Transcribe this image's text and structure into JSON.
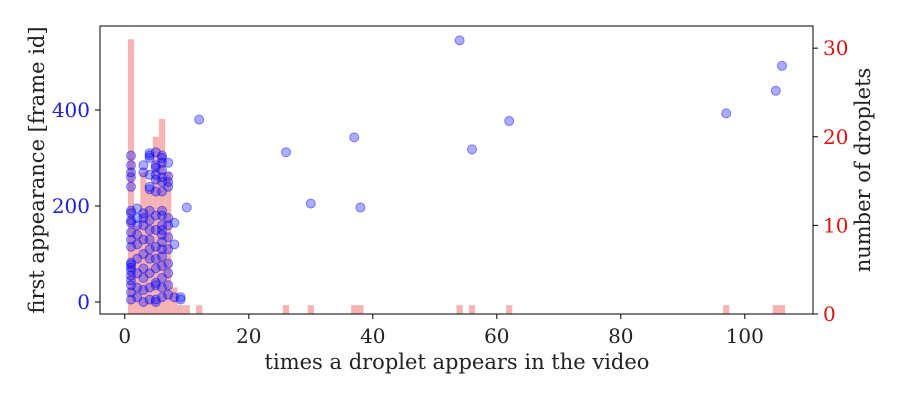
{
  "chart_data": {
    "type": "scatter",
    "title": "",
    "xlabel": "times a droplet appears in the video",
    "ylabel_left": "first appearance [frame id]",
    "ylabel_right": "number of droplets",
    "xlim": [
      -4,
      111
    ],
    "ylim_left": [
      -25,
      575
    ],
    "ylim_right": [
      0,
      32.5
    ],
    "xticks": [
      0,
      20,
      40,
      60,
      80,
      100
    ],
    "yticks_left": [
      0,
      200,
      400
    ],
    "yticks_right": [
      0,
      10,
      20,
      30
    ],
    "grid": false,
    "legend": "none",
    "colors": {
      "scatter": "#0000ff",
      "histogram": "#f4a6a6",
      "left_axis_text": "#1f1fd6",
      "right_axis_text": "#e01010"
    },
    "series": [
      {
        "kind": "scatter",
        "axis": "left",
        "points": [
          [
            1,
            5
          ],
          [
            1,
            20
          ],
          [
            1,
            35
          ],
          [
            1,
            45
          ],
          [
            1,
            55
          ],
          [
            1,
            65
          ],
          [
            1,
            72
          ],
          [
            1,
            78
          ],
          [
            1,
            82
          ],
          [
            1,
            115
          ],
          [
            1,
            130
          ],
          [
            1,
            145
          ],
          [
            1,
            165
          ],
          [
            1,
            170
          ],
          [
            1,
            185
          ],
          [
            1,
            190
          ],
          [
            1,
            240
          ],
          [
            1,
            260
          ],
          [
            1,
            270
          ],
          [
            1,
            285
          ],
          [
            1,
            305
          ],
          [
            2,
            10
          ],
          [
            2,
            30
          ],
          [
            2,
            60
          ],
          [
            2,
            90
          ],
          [
            2,
            120
          ],
          [
            2,
            140
          ],
          [
            2,
            160
          ],
          [
            2,
            175
          ],
          [
            2,
            195
          ],
          [
            3,
            0
          ],
          [
            3,
            25
          ],
          [
            3,
            50
          ],
          [
            3,
            70
          ],
          [
            3,
            100
          ],
          [
            3,
            130
          ],
          [
            3,
            160
          ],
          [
            3,
            175
          ],
          [
            3,
            185
          ],
          [
            3,
            270
          ],
          [
            3,
            285
          ],
          [
            4,
            5
          ],
          [
            4,
            30
          ],
          [
            4,
            60
          ],
          [
            4,
            90
          ],
          [
            4,
            110
          ],
          [
            4,
            130
          ],
          [
            4,
            150
          ],
          [
            4,
            170
          ],
          [
            4,
            190
          ],
          [
            4,
            235
          ],
          [
            4,
            240
          ],
          [
            4,
            265
          ],
          [
            4,
            300
          ],
          [
            4,
            305
          ],
          [
            4,
            310
          ],
          [
            5,
            0
          ],
          [
            5,
            5
          ],
          [
            5,
            35
          ],
          [
            5,
            40
          ],
          [
            5,
            70
          ],
          [
            5,
            90
          ],
          [
            5,
            115
          ],
          [
            5,
            150
          ],
          [
            5,
            180
          ],
          [
            5,
            230
          ],
          [
            5,
            255
          ],
          [
            5,
            265
          ],
          [
            5,
            280
          ],
          [
            5,
            285
          ],
          [
            5,
            312
          ],
          [
            6,
            10
          ],
          [
            6,
            30
          ],
          [
            6,
            50
          ],
          [
            6,
            75
          ],
          [
            6,
            95
          ],
          [
            6,
            110
          ],
          [
            6,
            125
          ],
          [
            6,
            140
          ],
          [
            6,
            150
          ],
          [
            6,
            160
          ],
          [
            6,
            180
          ],
          [
            6,
            190
          ],
          [
            6,
            230
          ],
          [
            6,
            250
          ],
          [
            6,
            260
          ],
          [
            6,
            275
          ],
          [
            6,
            290
          ],
          [
            6,
            300
          ],
          [
            6,
            305
          ],
          [
            7,
            15
          ],
          [
            7,
            35
          ],
          [
            7,
            60
          ],
          [
            7,
            80
          ],
          [
            7,
            110
          ],
          [
            7,
            135
          ],
          [
            7,
            160
          ],
          [
            7,
            175
          ],
          [
            7,
            240
          ],
          [
            7,
            250
          ],
          [
            7,
            262
          ],
          [
            7,
            290
          ],
          [
            8,
            10
          ],
          [
            8,
            120
          ],
          [
            8,
            165
          ],
          [
            9,
            5
          ],
          [
            9,
            10
          ],
          [
            10,
            197
          ],
          [
            12,
            380
          ],
          [
            26,
            312
          ],
          [
            30,
            205
          ],
          [
            37,
            343
          ],
          [
            38,
            197
          ],
          [
            54,
            545
          ],
          [
            56,
            318
          ],
          [
            62,
            377
          ],
          [
            97,
            393
          ],
          [
            105,
            440
          ],
          [
            106,
            492
          ]
        ]
      },
      {
        "kind": "histogram",
        "axis": "right",
        "bin_width": 1,
        "bins": [
          [
            1,
            31
          ],
          [
            2,
            10
          ],
          [
            3,
            16
          ],
          [
            4,
            14
          ],
          [
            5,
            20
          ],
          [
            6,
            22
          ],
          [
            7,
            16
          ],
          [
            8,
            3
          ],
          [
            9,
            1
          ],
          [
            10,
            1
          ],
          [
            12,
            1
          ],
          [
            26,
            1
          ],
          [
            30,
            1
          ],
          [
            37,
            1
          ],
          [
            38,
            1
          ],
          [
            54,
            1
          ],
          [
            56,
            1
          ],
          [
            62,
            1
          ],
          [
            97,
            1
          ],
          [
            105,
            1
          ],
          [
            106,
            1
          ]
        ]
      }
    ]
  }
}
